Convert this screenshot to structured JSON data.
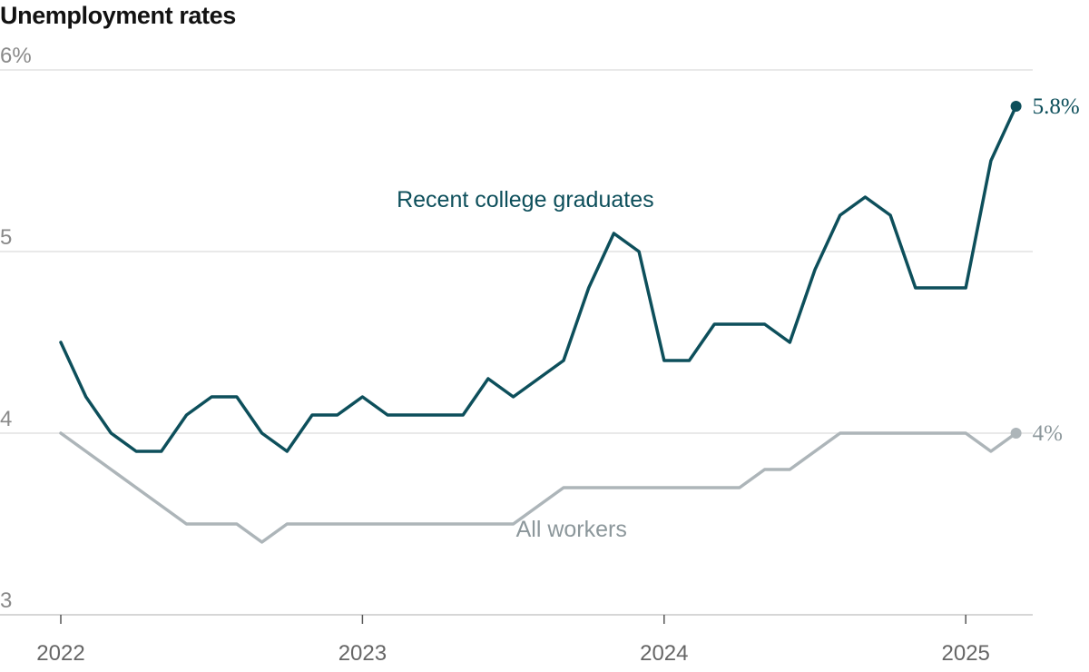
{
  "chart_data": {
    "type": "line",
    "title": "Unemployment rates",
    "xlabel": "",
    "ylabel": "",
    "ylim": [
      3,
      6
    ],
    "y_ticks": [
      {
        "value": 6,
        "label": "6%"
      },
      {
        "value": 5,
        "label": "5"
      },
      {
        "value": 4,
        "label": "4"
      },
      {
        "value": 3,
        "label": "3"
      }
    ],
    "x_ticks": [
      {
        "value": "2022-01",
        "label": "2022"
      },
      {
        "value": "2023-01",
        "label": "2023"
      },
      {
        "value": "2024-01",
        "label": "2024"
      },
      {
        "value": "2025-01",
        "label": "2025"
      }
    ],
    "grid": "horizontal",
    "x": [
      "2022-01",
      "2022-02",
      "2022-03",
      "2022-04",
      "2022-05",
      "2022-06",
      "2022-07",
      "2022-08",
      "2022-09",
      "2022-10",
      "2022-11",
      "2022-12",
      "2023-01",
      "2023-02",
      "2023-03",
      "2023-04",
      "2023-05",
      "2023-06",
      "2023-07",
      "2023-08",
      "2023-09",
      "2023-10",
      "2023-11",
      "2023-12",
      "2024-01",
      "2024-02",
      "2024-03",
      "2024-04",
      "2024-05",
      "2024-06",
      "2024-07",
      "2024-08",
      "2024-09",
      "2024-10",
      "2024-11",
      "2024-12",
      "2025-01",
      "2025-02",
      "2025-03"
    ],
    "series": [
      {
        "name": "Recent college graduates",
        "color": "#0d4f5b",
        "end_label": "5.8%",
        "values": [
          4.5,
          4.2,
          4.0,
          3.9,
          3.9,
          4.1,
          4.2,
          4.2,
          4.0,
          3.9,
          4.1,
          4.1,
          4.2,
          4.1,
          4.1,
          4.1,
          4.1,
          4.3,
          4.2,
          4.3,
          4.4,
          4.8,
          5.1,
          5.0,
          4.4,
          4.4,
          4.6,
          4.6,
          4.6,
          4.5,
          4.9,
          5.2,
          5.3,
          5.2,
          4.8,
          4.8,
          4.8,
          5.5,
          5.8
        ]
      },
      {
        "name": "All workers",
        "color": "#adb5b9",
        "label_color": "#8c979b",
        "end_label": "4%",
        "values": [
          4.0,
          3.9,
          3.8,
          3.7,
          3.6,
          3.5,
          3.5,
          3.5,
          3.4,
          3.5,
          3.5,
          3.5,
          3.5,
          3.5,
          3.5,
          3.5,
          3.5,
          3.5,
          3.5,
          3.6,
          3.7,
          3.7,
          3.7,
          3.7,
          3.7,
          3.7,
          3.7,
          3.7,
          3.8,
          3.8,
          3.9,
          4.0,
          4.0,
          4.0,
          4.0,
          4.0,
          4.0,
          3.9,
          4.0
        ]
      }
    ]
  }
}
